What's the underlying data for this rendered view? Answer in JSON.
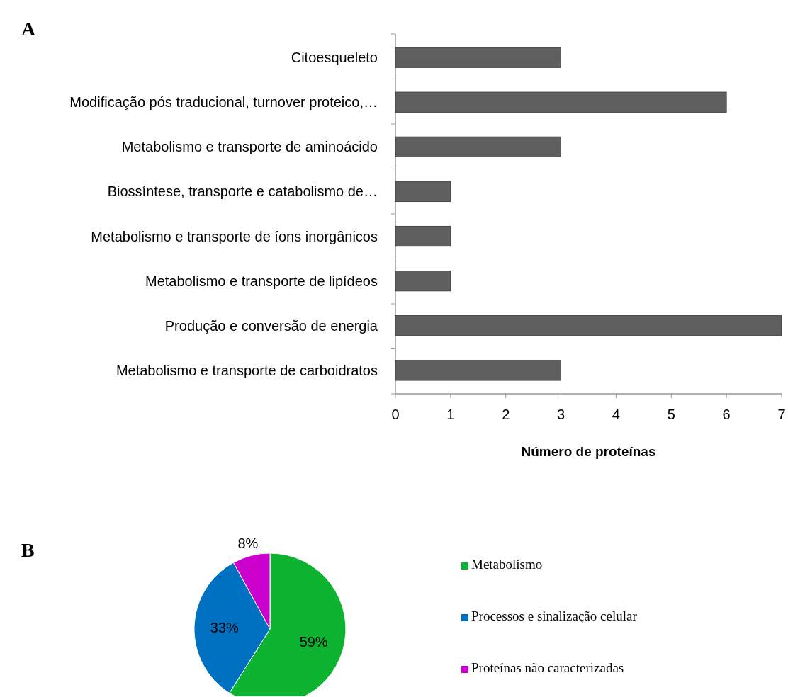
{
  "chart_data": [
    {
      "type": "bar",
      "title": "A",
      "orientation": "horizontal",
      "categories": [
        "Citoesqueleto",
        "Modificação pós traducional, turnover proteico,…",
        "Metabolismo e transporte de aminoácido",
        "Biossíntese, transporte e catabolismo de…",
        "Metabolismo e transporte de íons inorgânicos",
        "Metabolismo e transporte de lipídeos",
        "Produção e conversão de energia",
        "Metabolismo e transporte de carboidratos"
      ],
      "values": [
        3,
        6,
        3,
        1,
        1,
        1,
        7,
        3
      ],
      "color": "#5f5f5f",
      "xlim": [
        0,
        7
      ],
      "xticks": [
        0,
        1,
        2,
        3,
        4,
        5,
        6,
        7
      ],
      "xlabel": "Número de proteínas",
      "grid": false
    },
    {
      "type": "pie",
      "title": "B",
      "categories": [
        "Metabolismo",
        "Processos e sinalização celular",
        "Proteínas não caracterizadas"
      ],
      "values": [
        59,
        33,
        8
      ],
      "colors": [
        "#0db330",
        "#0070c0",
        "#cc00cc"
      ],
      "value_labels": [
        "59%",
        "33%",
        "8%"
      ],
      "legend": "right"
    }
  ]
}
